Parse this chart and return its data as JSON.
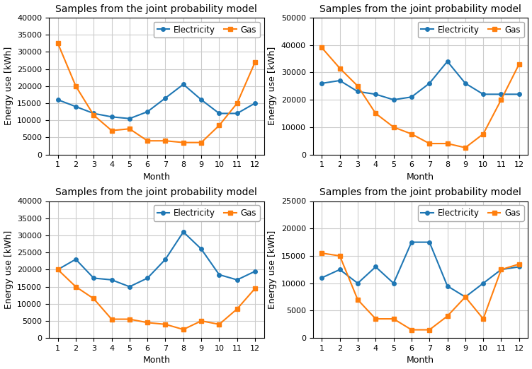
{
  "title": "Samples from the joint probability model",
  "xlabel": "Month",
  "ylabel": "Energy use [kWh]",
  "months": [
    1,
    2,
    3,
    4,
    5,
    6,
    7,
    8,
    9,
    10,
    11,
    12
  ],
  "subplots": [
    {
      "electricity": [
        16000,
        14000,
        12000,
        11000,
        10500,
        12500,
        16500,
        20500,
        16000,
        12000,
        12000,
        15000
      ],
      "gas": [
        32500,
        20000,
        11500,
        7000,
        7500,
        4000,
        4000,
        3500,
        3500,
        8500,
        15000,
        27000
      ],
      "ylim": [
        0,
        40000
      ],
      "yticks": [
        0,
        5000,
        10000,
        15000,
        20000,
        25000,
        30000,
        35000,
        40000
      ]
    },
    {
      "electricity": [
        26000,
        27000,
        23000,
        22000,
        20000,
        21000,
        26000,
        34000,
        26000,
        22000,
        22000,
        22000
      ],
      "gas": [
        39000,
        31500,
        25000,
        15000,
        10000,
        7500,
        4000,
        4000,
        2500,
        7500,
        20000,
        33000
      ],
      "ylim": [
        0,
        50000
      ],
      "yticks": [
        0,
        10000,
        20000,
        30000,
        40000,
        50000
      ]
    },
    {
      "electricity": [
        20000,
        23000,
        17500,
        17000,
        15000,
        17500,
        23000,
        31000,
        26000,
        18500,
        17000,
        19500
      ],
      "gas": [
        20000,
        15000,
        11500,
        5500,
        5500,
        4500,
        4000,
        2500,
        5000,
        4000,
        8500,
        14500
      ],
      "ylim": [
        0,
        40000
      ],
      "yticks": [
        0,
        5000,
        10000,
        15000,
        20000,
        25000,
        30000,
        35000,
        40000
      ]
    },
    {
      "electricity": [
        11000,
        12500,
        10000,
        13000,
        10000,
        17500,
        17500,
        9500,
        7500,
        10000,
        12500,
        13000
      ],
      "gas": [
        15500,
        15000,
        7000,
        3500,
        3500,
        1500,
        1500,
        4000,
        7500,
        3500,
        12500,
        13500
      ],
      "ylim": [
        0,
        25000
      ],
      "yticks": [
        0,
        5000,
        10000,
        15000,
        20000,
        25000
      ]
    }
  ],
  "elec_color": "#1f77b4",
  "gas_color": "#ff7f0e",
  "elec_marker": "o",
  "gas_marker": "s",
  "legend_elec": "Electricity",
  "legend_gas": "Gas",
  "grid_color": "#cccccc",
  "title_fontsize": 10,
  "label_fontsize": 9,
  "tick_fontsize": 8,
  "legend_fontsize": 8.5
}
